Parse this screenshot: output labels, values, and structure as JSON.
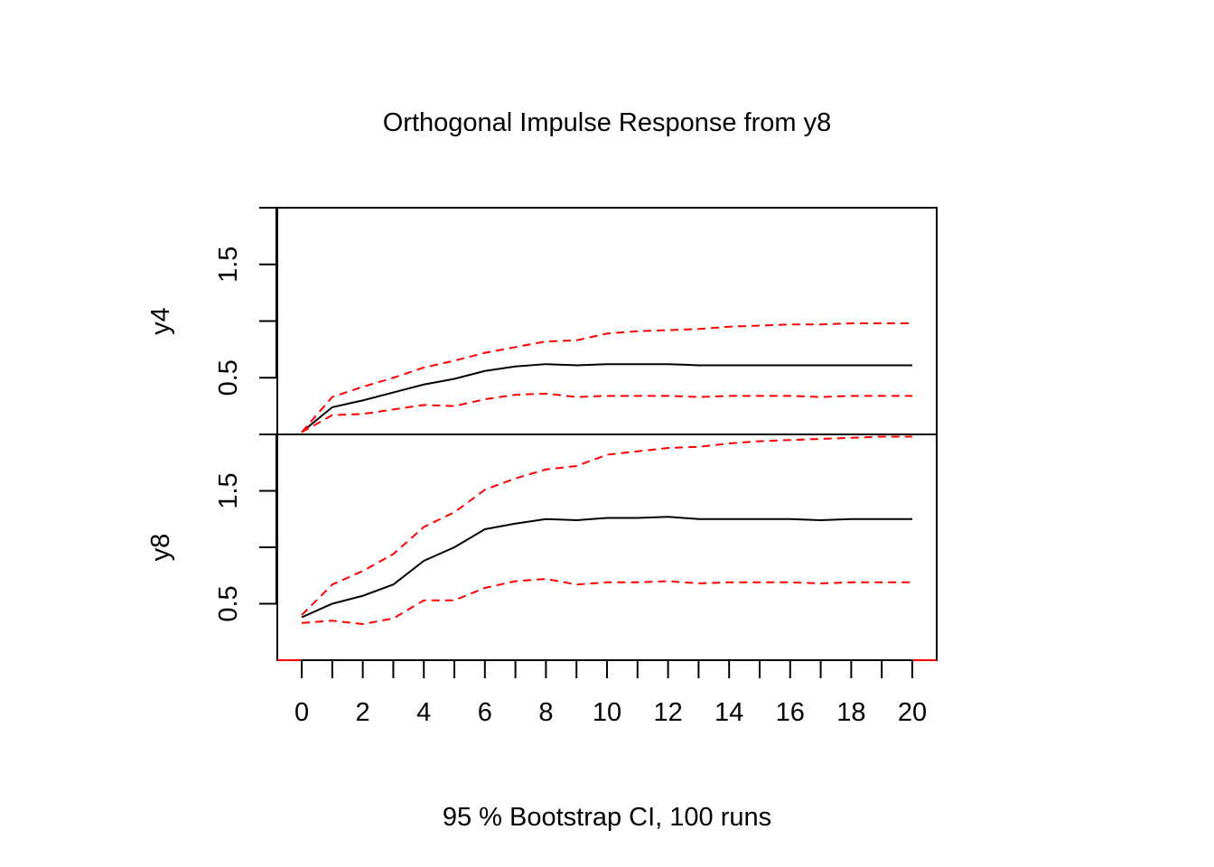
{
  "chart_data": {
    "type": "line",
    "title": "Orthogonal Impulse Response from y8",
    "xlabel": "95 % Bootstrap CI,  100 runs",
    "x": [
      0,
      1,
      2,
      3,
      4,
      5,
      6,
      7,
      8,
      9,
      10,
      11,
      12,
      13,
      14,
      15,
      16,
      17,
      18,
      19,
      20
    ],
    "x_tick_labels": [
      "0",
      "2",
      "4",
      "6",
      "8",
      "10",
      "12",
      "14",
      "16",
      "18",
      "20"
    ],
    "xlim": [
      -0.8,
      20.8
    ],
    "colors": {
      "response": "#000000",
      "ci": "#ff0000",
      "zero_line": "#ff0000"
    },
    "panels": [
      {
        "ylabel": "y4",
        "ylim": [
          0,
          2.0
        ],
        "y_tick_labels": [
          "0.5",
          "1.5"
        ],
        "series": [
          {
            "values": [
              0.02,
              0.24,
              0.3,
              0.37,
              0.44,
              0.49,
              0.56,
              0.6,
              0.62,
              0.61,
              0.62,
              0.62,
              0.62,
              0.61,
              0.61,
              0.61,
              0.61,
              0.61,
              0.61,
              0.61,
              0.61
            ]
          },
          {
            "values": [
              0.02,
              0.33,
              0.42,
              0.5,
              0.59,
              0.65,
              0.72,
              0.77,
              0.82,
              0.83,
              0.89,
              0.91,
              0.92,
              0.93,
              0.95,
              0.96,
              0.97,
              0.97,
              0.98,
              0.98,
              0.98
            ]
          },
          {
            "values": [
              0.02,
              0.17,
              0.18,
              0.22,
              0.26,
              0.25,
              0.31,
              0.35,
              0.36,
              0.33,
              0.34,
              0.34,
              0.34,
              0.33,
              0.34,
              0.34,
              0.34,
              0.33,
              0.34,
              0.34,
              0.34
            ]
          }
        ],
        "zero_line": 0.0
      },
      {
        "ylabel": "y8",
        "ylim": [
          0,
          2.0
        ],
        "y_tick_labels": [
          "0.5",
          "1.5"
        ],
        "series": [
          {
            "values": [
              0.38,
              0.5,
              0.57,
              0.67,
              0.88,
              1.0,
              1.16,
              1.21,
              1.25,
              1.24,
              1.26,
              1.26,
              1.27,
              1.25,
              1.25,
              1.25,
              1.25,
              1.24,
              1.25,
              1.25,
              1.25
            ]
          },
          {
            "values": [
              0.4,
              0.67,
              0.79,
              0.94,
              1.18,
              1.31,
              1.51,
              1.61,
              1.69,
              1.72,
              1.82,
              1.85,
              1.88,
              1.89,
              1.92,
              1.94,
              1.95,
              1.96,
              1.97,
              1.98,
              1.98
            ]
          },
          {
            "values": [
              0.33,
              0.35,
              0.32,
              0.37,
              0.53,
              0.53,
              0.64,
              0.7,
              0.72,
              0.67,
              0.69,
              0.69,
              0.7,
              0.68,
              0.69,
              0.69,
              0.69,
              0.68,
              0.69,
              0.69,
              0.69
            ]
          }
        ],
        "zero_line": 0.0
      }
    ]
  }
}
